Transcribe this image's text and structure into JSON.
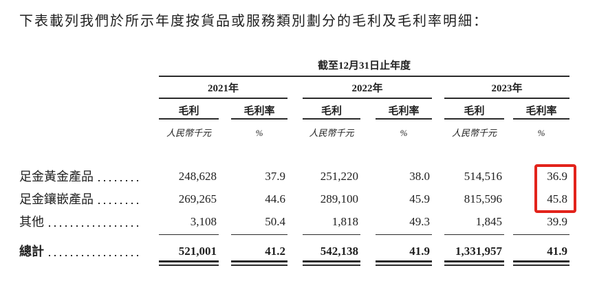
{
  "intro_text": "下表載列我們於所示年度按貨品或服務類別劃分的毛利及毛利率明細：",
  "table": {
    "period_header": "截至12月31日止年度",
    "years": [
      "2021年",
      "2022年",
      "2023年"
    ],
    "column_headers": {
      "gross_profit": "毛利",
      "margin": "毛利率"
    },
    "unit_headers": {
      "gross_profit": "人民幣千元",
      "margin": "%"
    },
    "rows": [
      {
        "label": "足金黃金產品",
        "values": [
          "248,628",
          "37.9",
          "251,220",
          "38.0",
          "514,516",
          "36.9"
        ]
      },
      {
        "label": "足金鑲嵌產品",
        "values": [
          "269,265",
          "44.6",
          "289,100",
          "45.9",
          "815,596",
          "45.8"
        ]
      },
      {
        "label": "其他",
        "values": [
          "3,108",
          "50.4",
          "1,818",
          "49.3",
          "1,845",
          "39.9"
        ]
      }
    ],
    "total": {
      "label": "總計",
      "values": [
        "521,001",
        "41.2",
        "542,138",
        "41.9",
        "1,331,957",
        "41.9"
      ]
    },
    "highlight": {
      "color": "#e2231b",
      "highlighted_values": [
        "36.9",
        "45.8"
      ],
      "column": "2023年 毛利率"
    }
  }
}
